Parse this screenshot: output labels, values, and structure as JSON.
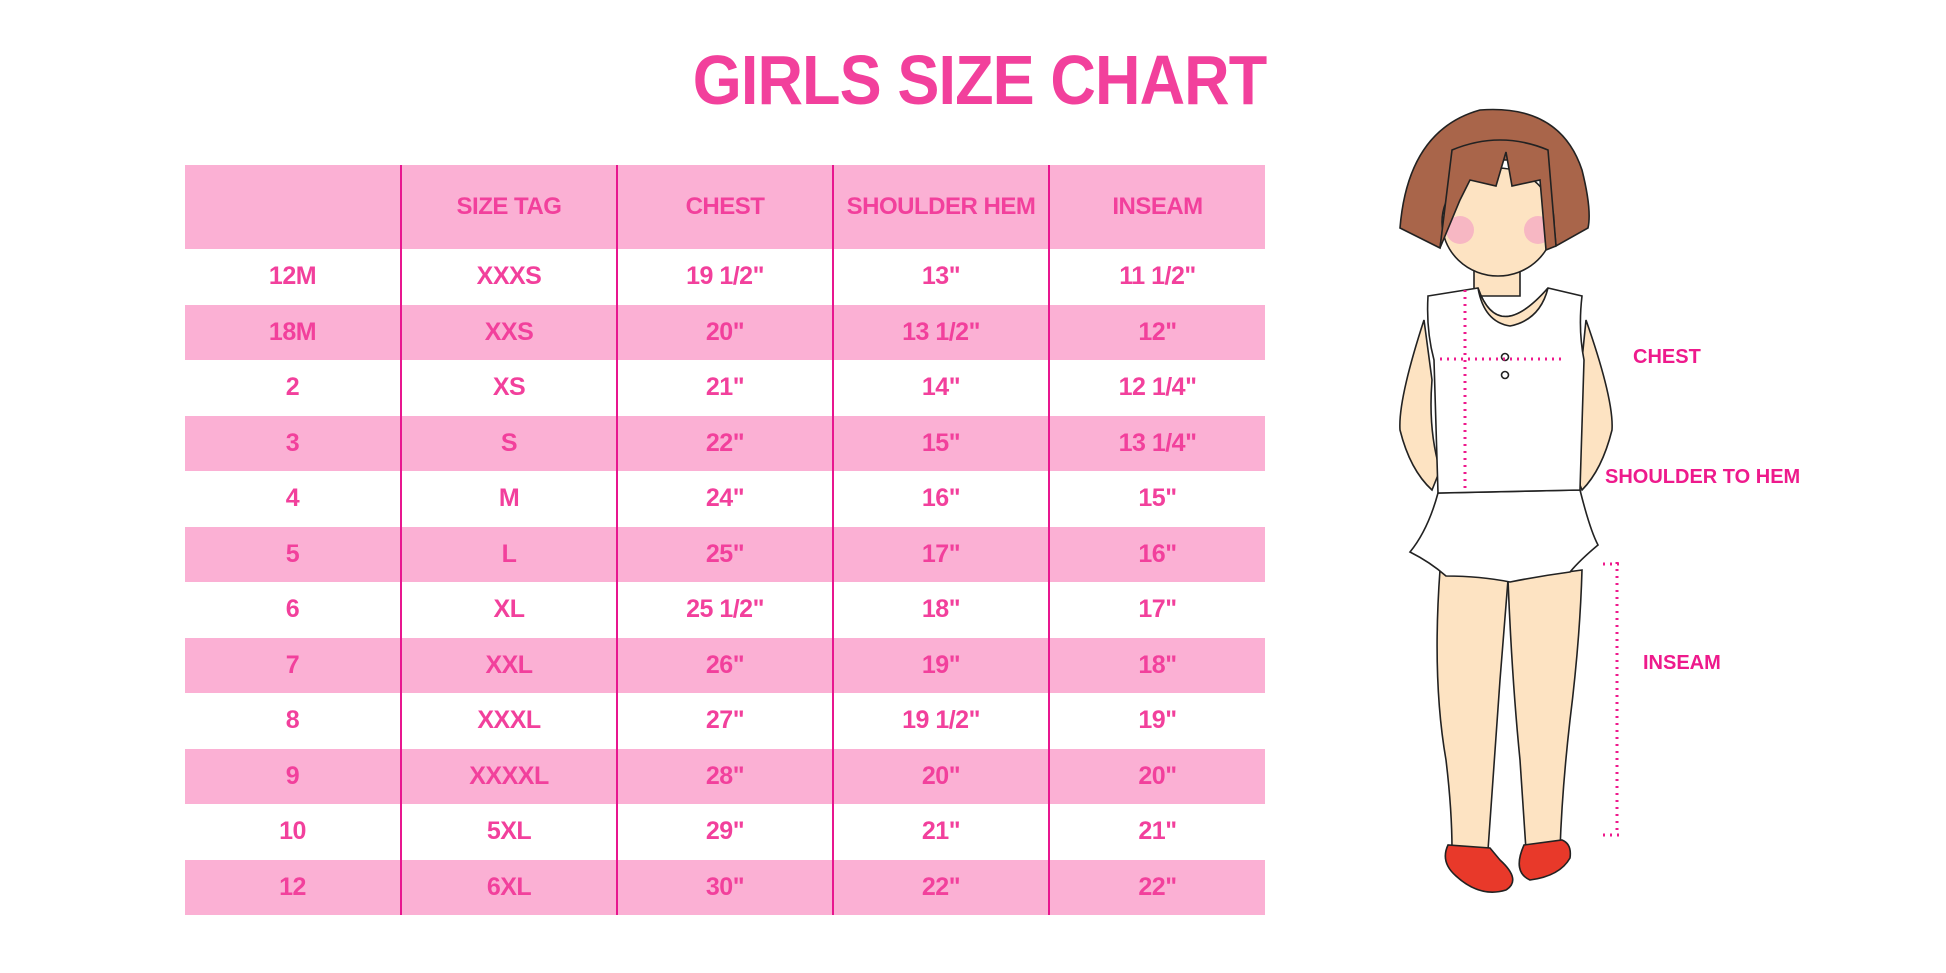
{
  "title": "GIRLS SIZE CHART",
  "table": {
    "headers": [
      "",
      "SIZE TAG",
      "CHEST",
      "SHOULDER HEM",
      "INSEAM"
    ],
    "rows": [
      [
        "12M",
        "XXXS",
        "19 1/2\"",
        "13\"",
        "11 1/2\""
      ],
      [
        "18M",
        "XXS",
        "20\"",
        "13 1/2\"",
        "12\""
      ],
      [
        "2",
        "XS",
        "21\"",
        "14\"",
        "12 1/4\""
      ],
      [
        "3",
        "S",
        "22\"",
        "15\"",
        "13 1/4\""
      ],
      [
        "4",
        "M",
        "24\"",
        "16\"",
        "15\""
      ],
      [
        "5",
        "L",
        "25\"",
        "17\"",
        "16\""
      ],
      [
        "6",
        "XL",
        "25 1/2\"",
        "18\"",
        "17\""
      ],
      [
        "7",
        "XXL",
        "26\"",
        "19\"",
        "18\""
      ],
      [
        "8",
        "XXXL",
        "27\"",
        "19 1/2\"",
        "19\""
      ],
      [
        "9",
        "XXXXL",
        "28\"",
        "20\"",
        "20\""
      ],
      [
        "10",
        "5XL",
        "29\"",
        "21\"",
        "21\""
      ],
      [
        "12",
        "6XL",
        "30\"",
        "22\"",
        "22\""
      ]
    ]
  },
  "figure": {
    "labels": {
      "chest": "CHEST",
      "shoulder_to_hem": "SHOULDER TO HEM",
      "inseam": "INSEAM"
    }
  },
  "colors": {
    "accent": "#f2409c",
    "row_fill": "#fbb0d4",
    "divider": "#e8168f"
  }
}
